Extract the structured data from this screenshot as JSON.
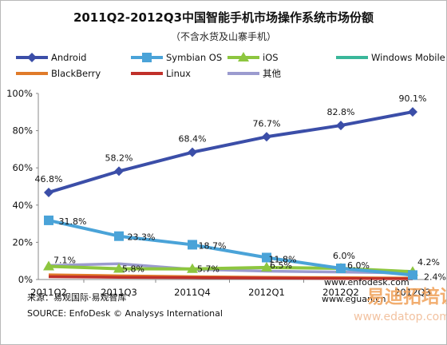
{
  "chart_data": {
    "type": "line",
    "title": "2011Q2-2012Q3中国智能手机市场操作系统市场份额",
    "subtitle": "（不含水货及山寨手机）",
    "categories": [
      "2011Q2",
      "2011Q3",
      "2011Q4",
      "2012Q1",
      "2012Q2",
      "2012Q3"
    ],
    "ylim": [
      0,
      100
    ],
    "yticks": [
      "0%",
      "20%",
      "40%",
      "60%",
      "80%",
      "100%"
    ],
    "grid": false,
    "legend_position": "top",
    "series": [
      {
        "name": "Android",
        "color": "#3b4ea8",
        "marker": "diamond",
        "values": [
          46.8,
          58.2,
          68.4,
          76.7,
          82.8,
          90.1
        ],
        "labels": [
          "46.8%",
          "58.2%",
          "68.4%",
          "76.7%",
          "82.8%",
          "90.1%"
        ]
      },
      {
        "name": "Symbian OS",
        "color": "#4aa3d8",
        "marker": "square",
        "values": [
          31.8,
          23.3,
          18.7,
          11.8,
          6.0,
          2.4
        ],
        "labels": [
          "31.8%",
          "23.3%",
          "18.7%",
          "11.8%",
          "6.0%",
          "2.4%"
        ]
      },
      {
        "name": "iOS",
        "color": "#8dc63f",
        "marker": "triangle",
        "values": [
          7.1,
          5.8,
          5.7,
          6.5,
          6.0,
          4.2
        ],
        "labels": [
          "7.1%",
          "5.8%",
          "5.7%",
          "6.5%",
          "6.0%",
          "4.2%"
        ]
      },
      {
        "name": "Windows Mobile",
        "color": "#3ab79a",
        "marker": "none",
        "values": [
          2.0,
          1.5,
          1.2,
          1.0,
          0.8,
          0.5
        ]
      },
      {
        "name": "BlackBerry",
        "color": "#e07b2a",
        "marker": "none",
        "values": [
          2.5,
          2.0,
          1.5,
          1.2,
          1.0,
          0.7
        ]
      },
      {
        "name": "Linux",
        "color": "#c0302a",
        "marker": "none",
        "values": [
          1.5,
          1.2,
          1.0,
          0.8,
          0.6,
          0.4
        ]
      },
      {
        "name": "其他",
        "color": "#9b9bcf",
        "marker": "none",
        "values": [
          7.5,
          8.5,
          5.5,
          4.5,
          4.0,
          3.5
        ]
      }
    ]
  },
  "footer": {
    "source_cn": "来源：易观国际·易观智库",
    "source_en": "SOURCE: EnfoDesk © Analysys International",
    "site_mid": "www.enfodesk.com",
    "site_bottom": "www.eguan.cn",
    "watermark_text": "易迪拓培训",
    "watermark_url": "www.edatop.com"
  }
}
